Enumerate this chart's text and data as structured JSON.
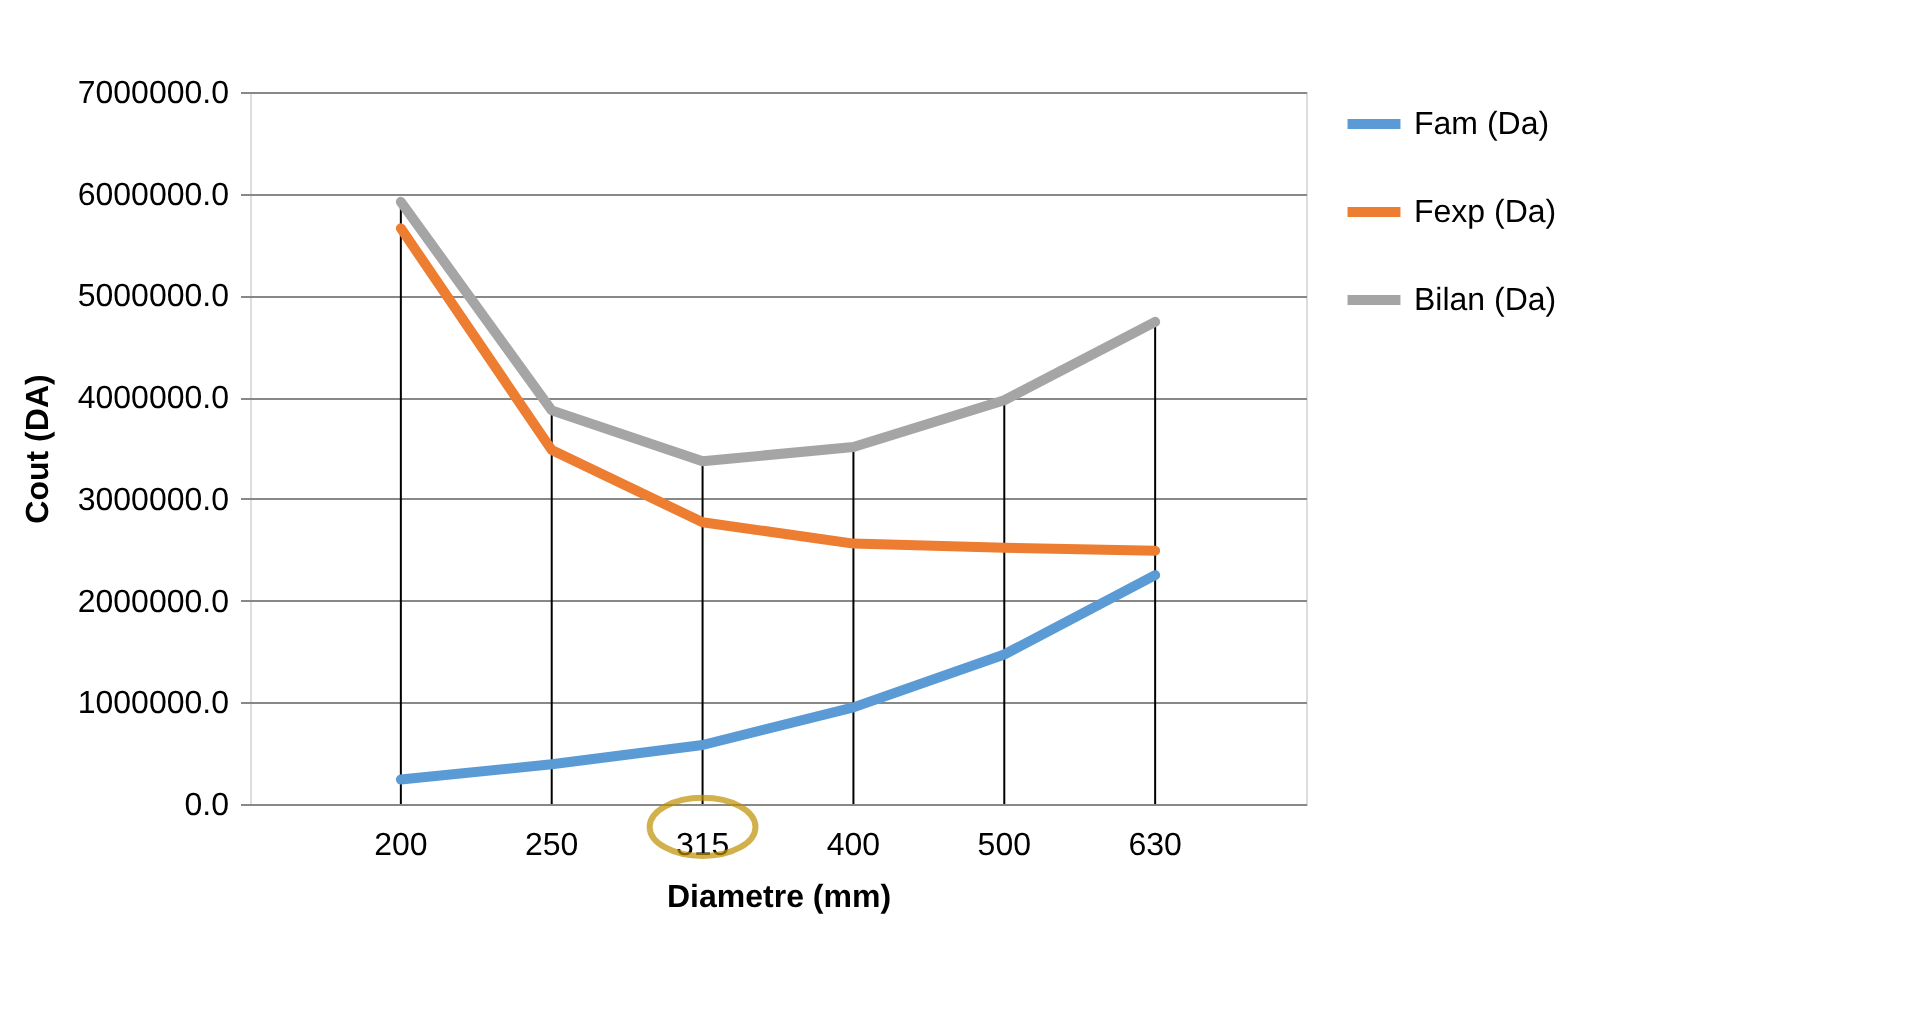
{
  "chart_data": {
    "type": "line",
    "xlabel": "Diametre (mm)",
    "ylabel": "Cout (DA)",
    "categories": [
      "200",
      "250",
      "315",
      "400",
      "500",
      "630"
    ],
    "series": [
      {
        "name": "Fam (Da)",
        "color": "#5b9bd5",
        "values": [
          240000,
          390000,
          580000,
          950000,
          1470000,
          2250000
        ]
      },
      {
        "name": "Fexp (Da)",
        "color": "#ed7d31",
        "values": [
          5660000,
          3480000,
          2770000,
          2560000,
          2520000,
          2490000
        ]
      },
      {
        "name": "Bilan (Da)",
        "color": "#a5a5a5",
        "values": [
          5920000,
          3870000,
          3370000,
          3510000,
          3970000,
          4740000
        ],
        "errors": [
          [
            0,
            5920000
          ],
          [
            0,
            3870000
          ],
          [
            0,
            3370000
          ],
          [
            0,
            3510000
          ],
          [
            0,
            3970000
          ],
          [
            0,
            4740000
          ]
        ]
      }
    ],
    "ylim": [
      0,
      7000000
    ],
    "yticks": [
      {
        "value": 0,
        "label": "0.0"
      },
      {
        "value": 1000000,
        "label": "1000000.0"
      },
      {
        "value": 2000000,
        "label": "2000000.0"
      },
      {
        "value": 3000000,
        "label": "3000000.0"
      },
      {
        "value": 4000000,
        "label": "4000000.0"
      },
      {
        "value": 5000000,
        "label": "5000000.0"
      },
      {
        "value": 6000000,
        "label": "6000000.0"
      },
      {
        "value": 7000000,
        "label": "7000000.0"
      }
    ],
    "grid": "y",
    "legend": "right",
    "marker": "none",
    "line_style": "solid"
  }
}
